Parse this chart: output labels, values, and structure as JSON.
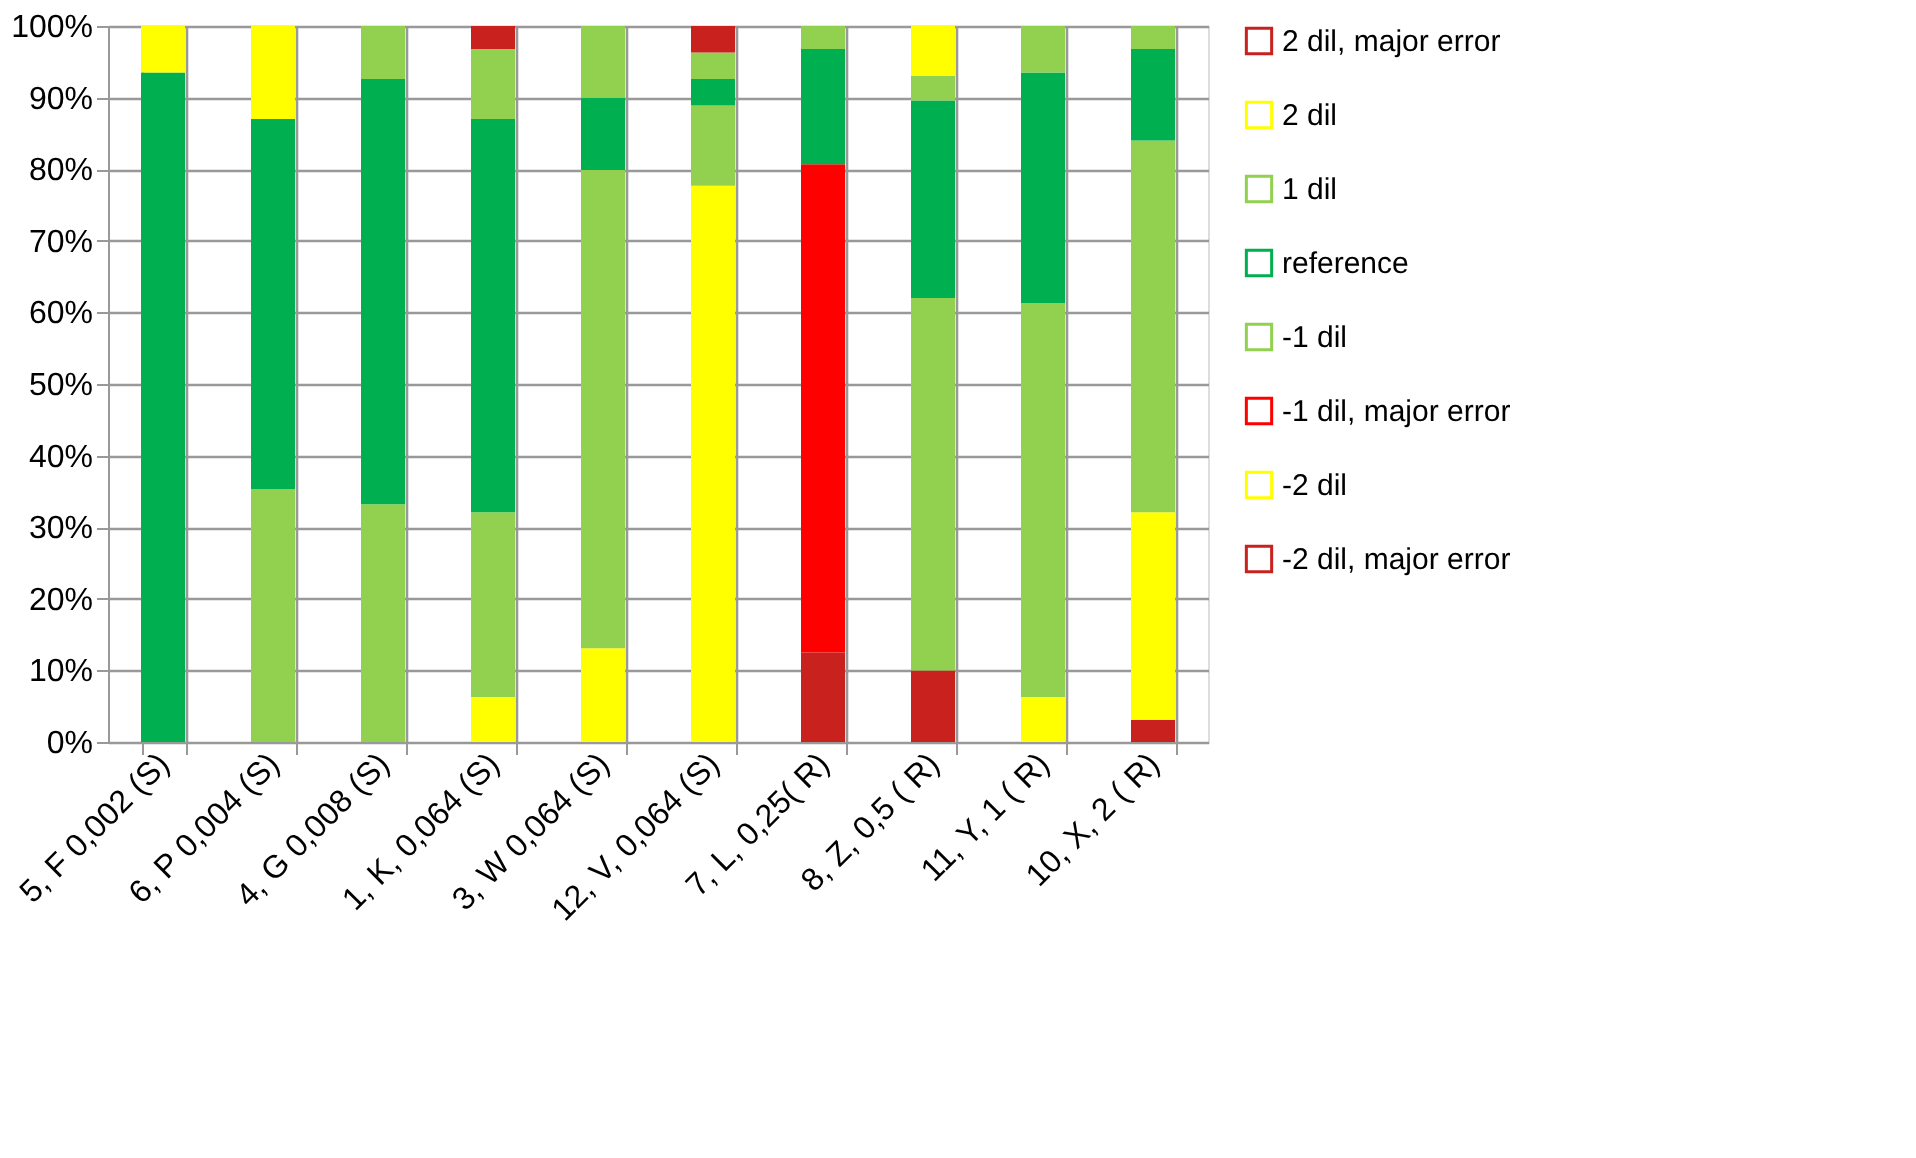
{
  "chart_data": {
    "type": "bar",
    "stacked": true,
    "categories": [
      "5, F 0,002 (S)",
      "6, P 0,004 (S)",
      "4, G 0,008 (S)",
      "1, K, 0,064 (S)",
      "3, W 0,064 (S)",
      "12, V, 0,064 (S)",
      "7, L, 0,25( R)",
      "8, Z, 0,5 ( R)",
      "11, Y, 1 ( R)",
      "10, X, 2  ( R)"
    ],
    "series": [
      {
        "name": "-2 dil, major error",
        "color": "#c9211e",
        "values": [
          null,
          null,
          null,
          null,
          null,
          null,
          12.5,
          10.0,
          null,
          3.1
        ]
      },
      {
        "name": "-2 dil",
        "color": "#ffff00",
        "values": [
          null,
          null,
          null,
          6.3,
          13.1,
          77.7,
          null,
          null,
          6.3,
          29.0
        ]
      },
      {
        "name": "-1 dil, major error",
        "color": "#ff0000",
        "values": [
          null,
          null,
          null,
          null,
          null,
          null,
          68.2,
          null,
          null,
          null
        ]
      },
      {
        "name": "-1 dil",
        "color": "#92d050",
        "values": [
          null,
          35.3,
          33.2,
          25.8,
          66.8,
          11.2,
          null,
          52.0,
          55.0,
          51.9
        ]
      },
      {
        "name": "reference",
        "color": "#00b050",
        "values": [
          93.5,
          51.7,
          59.4,
          54.9,
          10.1,
          3.7,
          16.1,
          27.6,
          32.2,
          12.8
        ]
      },
      {
        "name": "1 dil",
        "color": "#92d050",
        "values": [
          null,
          null,
          7.4,
          9.8,
          10.0,
          3.7,
          3.2,
          3.4,
          6.5,
          3.2
        ]
      },
      {
        "name": "2 dil",
        "color": "#ffff00",
        "values": [
          6.5,
          13.0,
          null,
          null,
          null,
          null,
          null,
          7.0,
          null,
          null
        ]
      },
      {
        "name": "2 dil, major error",
        "color": "#c9211e",
        "values": [
          null,
          null,
          null,
          3.2,
          null,
          3.7,
          null,
          null,
          null,
          null
        ]
      }
    ],
    "ylim": [
      0,
      100
    ],
    "yticks": [
      {
        "value": 0,
        "label": "0%"
      },
      {
        "value": 10,
        "label": "10%"
      },
      {
        "value": 20,
        "label": "20%"
      },
      {
        "value": 30,
        "label": "30%"
      },
      {
        "value": 40,
        "label": "40%"
      },
      {
        "value": 50,
        "label": "50%"
      },
      {
        "value": 60,
        "label": "60%"
      },
      {
        "value": 70,
        "label": "70%"
      },
      {
        "value": 80,
        "label": "80%"
      },
      {
        "value": 90,
        "label": "90%"
      },
      {
        "value": 100,
        "label": "100%"
      }
    ],
    "grid": true,
    "legend": "right"
  }
}
